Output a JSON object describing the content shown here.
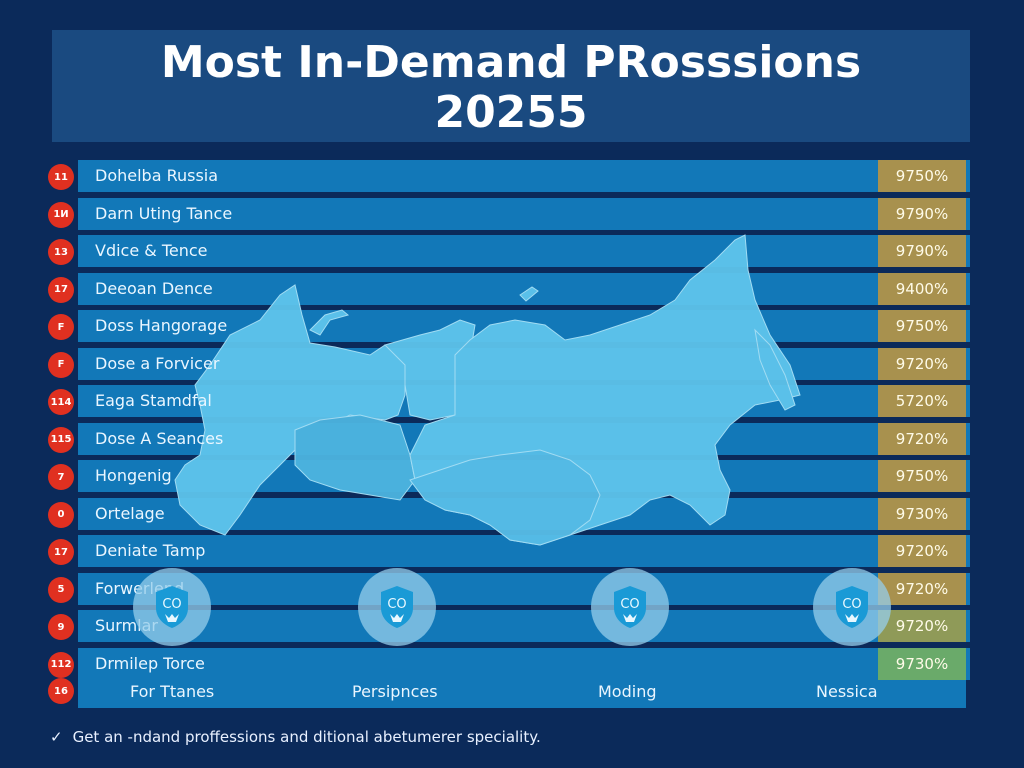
{
  "title": {
    "line1": "Most In-Demand PRosssions",
    "line2": "20255"
  },
  "rows": [
    {
      "rank": "11",
      "label": "Dohelba Russia",
      "value": "9750%"
    },
    {
      "rank": "1И",
      "label": "Darn Uting Tance",
      "value": "9790%"
    },
    {
      "rank": "13",
      "label": "Vdice & Tence",
      "value": "9790%"
    },
    {
      "rank": "17",
      "label": "Deeoan Dence",
      "value": "9400%"
    },
    {
      "rank": "F",
      "label": "Doss Hangorage",
      "value": "9750%"
    },
    {
      "rank": "F",
      "label": "Dose a Forvicer",
      "value": "9720%"
    },
    {
      "rank": "114",
      "label": "Eaga Stamdfal",
      "value": "5720%"
    },
    {
      "rank": "115",
      "label": "Dose A Seances",
      "value": "9720%"
    },
    {
      "rank": "7",
      "label": "Hongenig",
      "value": "9750%"
    },
    {
      "rank": "0",
      "label": "Ortelage",
      "value": "9730%"
    },
    {
      "rank": "17",
      "label": "Deniate Tamp",
      "value": "9720%"
    },
    {
      "rank": "5",
      "label": "Forwerlend",
      "value": "9720%"
    },
    {
      "rank": "9",
      "label": "Surmlar",
      "value": "9720%"
    },
    {
      "rank": "112",
      "label": "Drmilep Torce",
      "value": "9730%"
    }
  ],
  "bottom_row": {
    "rank": "16",
    "columns": [
      "For Ttanes",
      "Persipnces",
      "Moding",
      "Nessica"
    ]
  },
  "emblems": [
    {
      "icon": "shield-co-icon",
      "text": "CO"
    },
    {
      "icon": "shield-co-icon",
      "text": "CO"
    },
    {
      "icon": "shield-co-icon",
      "text": "CO"
    },
    {
      "icon": "shield-co-icon",
      "text": "CO"
    }
  ],
  "footer": {
    "icon": "checkmark-icon",
    "text": "Get an -ndand proffessions and ditional abetumerer speciality."
  },
  "colors": {
    "background": "#0b2a5a",
    "title_box": "#1a4a80",
    "row_bar": "#1278b8",
    "badge": "#e03020",
    "value_box": "#a8914e",
    "value_box_last": "#6aaa6a",
    "map_fill": "#5ec4ec"
  }
}
